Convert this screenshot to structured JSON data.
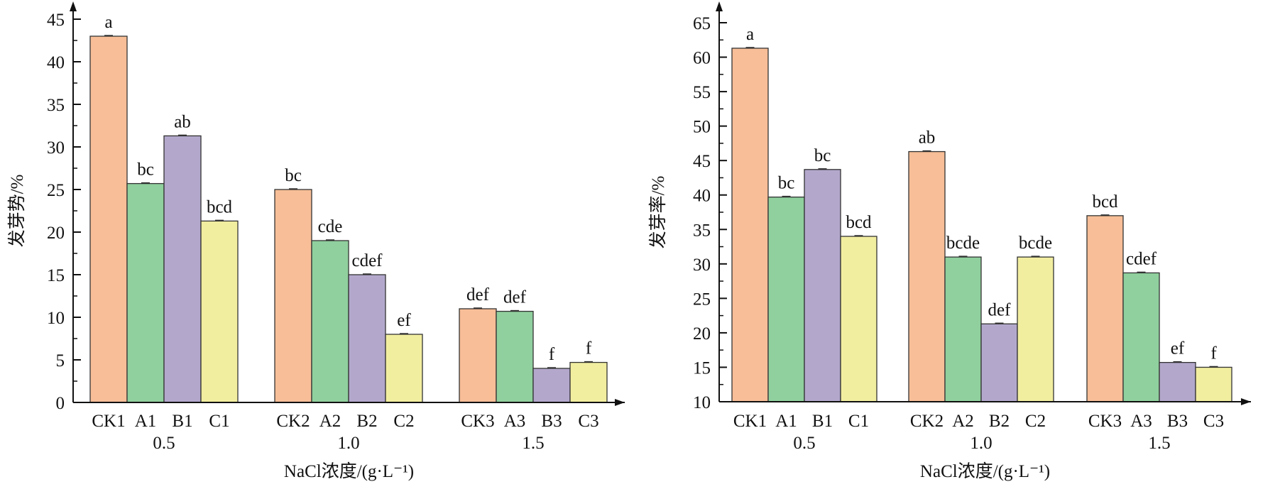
{
  "colors": {
    "CK": "#F7BE97",
    "A": "#90D09E",
    "B": "#B3A8CC",
    "C": "#F2EEA0"
  },
  "chart_data": [
    {
      "type": "bar",
      "ylabel": "发芽势/%",
      "xlabel": "NaCl浓度/(g·L⁻¹)",
      "ylim": [
        0,
        45
      ],
      "yticks": [
        0,
        5,
        10,
        15,
        20,
        25,
        30,
        35,
        40,
        45
      ],
      "groups": [
        {
          "label": "0.5",
          "bars": [
            {
              "name": "CK1",
              "value": 43.0,
              "sig": "a",
              "type": "CK"
            },
            {
              "name": "A1",
              "value": 25.7,
              "sig": "bc",
              "type": "A"
            },
            {
              "name": "B1",
              "value": 31.3,
              "sig": "ab",
              "type": "B"
            },
            {
              "name": "C1",
              "value": 21.3,
              "sig": "bcd",
              "type": "C"
            }
          ]
        },
        {
          "label": "1.0",
          "bars": [
            {
              "name": "CK2",
              "value": 25.0,
              "sig": "bc",
              "type": "CK"
            },
            {
              "name": "A2",
              "value": 19.0,
              "sig": "cde",
              "type": "A"
            },
            {
              "name": "B2",
              "value": 15.0,
              "sig": "cdef",
              "type": "B"
            },
            {
              "name": "C2",
              "value": 8.0,
              "sig": "ef",
              "type": "C"
            }
          ]
        },
        {
          "label": "1.5",
          "bars": [
            {
              "name": "CK3",
              "value": 11.0,
              "sig": "def",
              "type": "CK"
            },
            {
              "name": "A3",
              "value": 10.7,
              "sig": "def",
              "type": "A"
            },
            {
              "name": "B3",
              "value": 4.0,
              "sig": "f",
              "type": "B"
            },
            {
              "name": "C3",
              "value": 4.7,
              "sig": "f",
              "type": "C"
            }
          ]
        }
      ]
    },
    {
      "type": "bar",
      "ylabel": "发芽率/%",
      "xlabel": "NaCl浓度/(g·L⁻¹)",
      "ylim": [
        10,
        65
      ],
      "yticks": [
        10,
        15,
        20,
        25,
        30,
        35,
        40,
        45,
        50,
        55,
        60,
        65
      ],
      "groups": [
        {
          "label": "0.5",
          "bars": [
            {
              "name": "CK1",
              "value": 61.3,
              "sig": "a",
              "type": "CK"
            },
            {
              "name": "A1",
              "value": 39.7,
              "sig": "bc",
              "type": "A"
            },
            {
              "name": "B1",
              "value": 43.7,
              "sig": "bc",
              "type": "B"
            },
            {
              "name": "C1",
              "value": 34.0,
              "sig": "bcd",
              "type": "C"
            }
          ]
        },
        {
          "label": "1.0",
          "bars": [
            {
              "name": "CK2",
              "value": 46.3,
              "sig": "ab",
              "type": "CK"
            },
            {
              "name": "A2",
              "value": 31.0,
              "sig": "bcde",
              "type": "A"
            },
            {
              "name": "B2",
              "value": 21.3,
              "sig": "def",
              "type": "B"
            },
            {
              "name": "C2",
              "value": 31.0,
              "sig": "bcde",
              "type": "C"
            }
          ]
        },
        {
          "label": "1.5",
          "bars": [
            {
              "name": "CK3",
              "value": 37.0,
              "sig": "bcd",
              "type": "CK"
            },
            {
              "name": "A3",
              "value": 28.7,
              "sig": "cdef",
              "type": "A"
            },
            {
              "name": "B3",
              "value": 15.7,
              "sig": "ef",
              "type": "B"
            },
            {
              "name": "C3",
              "value": 15.0,
              "sig": "f",
              "type": "C"
            }
          ]
        }
      ]
    }
  ]
}
